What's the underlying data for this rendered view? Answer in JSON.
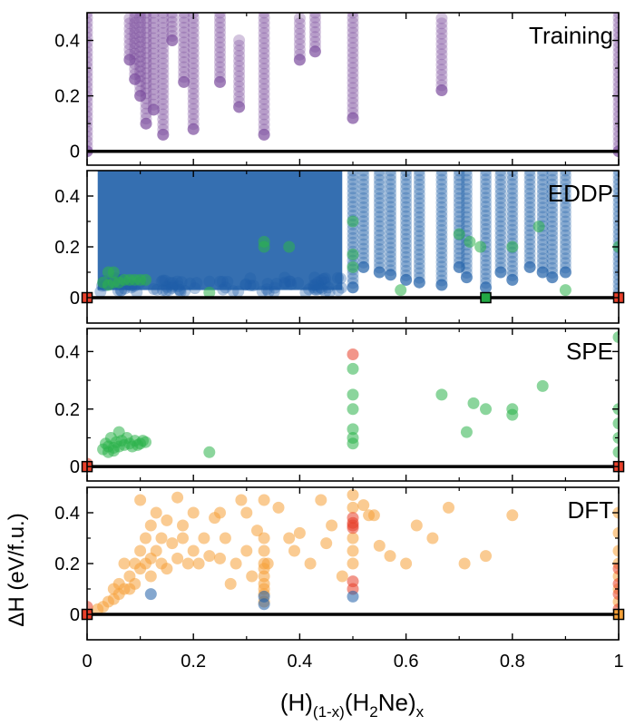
{
  "xlabel_parts": [
    "(H)",
    "(1-x)",
    "(H",
    "2",
    "Ne)",
    "x"
  ],
  "ylabel": "ΔH (eV/f.u.)",
  "colors": {
    "training": "#7a4a9c",
    "eddp": "#1f5fa8",
    "spe": "#2cb34a",
    "dft": "#f5a038",
    "red": "#e8402a",
    "hull_marker": "#22a844"
  },
  "chart_data": [
    {
      "type": "scatter",
      "panel_label": "Training",
      "x_ticks": [
        "0",
        "0.2",
        "0.4",
        "0.6",
        "0.8",
        "1"
      ],
      "y_ticks": [
        "0",
        "0.2",
        "0.4"
      ],
      "xlim": [
        0,
        1
      ],
      "ylim": [
        -0.05,
        0.5
      ],
      "hull_line": [
        [
          0,
          0
        ],
        [
          1,
          0
        ]
      ],
      "series": [
        {
          "color_key": "training",
          "columns": [
            {
              "x": 0.0,
              "y_min": 0.0,
              "y_max": 0.5
            },
            {
              "x": 0.08,
              "y_min": 0.33,
              "y_max": 0.48
            },
            {
              "x": 0.09,
              "y_min": 0.26,
              "y_max": 0.5
            },
            {
              "x": 0.1,
              "y_min": 0.2,
              "y_max": 0.5
            },
            {
              "x": 0.111,
              "y_min": 0.1,
              "y_max": 0.5
            },
            {
              "x": 0.125,
              "y_min": 0.15,
              "y_max": 0.5
            },
            {
              "x": 0.143,
              "y_min": 0.06,
              "y_max": 0.5
            },
            {
              "x": 0.16,
              "y_min": 0.4,
              "y_max": 0.5
            },
            {
              "x": 0.182,
              "y_min": 0.25,
              "y_max": 0.5
            },
            {
              "x": 0.2,
              "y_min": 0.08,
              "y_max": 0.5
            },
            {
              "x": 0.25,
              "y_min": 0.25,
              "y_max": 0.5
            },
            {
              "x": 0.286,
              "y_min": 0.16,
              "y_max": 0.4
            },
            {
              "x": 0.333,
              "y_min": 0.06,
              "y_max": 0.5
            },
            {
              "x": 0.4,
              "y_min": 0.33,
              "y_max": 0.48
            },
            {
              "x": 0.429,
              "y_min": 0.36,
              "y_max": 0.5
            },
            {
              "x": 0.5,
              "y_min": 0.12,
              "y_max": 0.5
            },
            {
              "x": 0.667,
              "y_min": 0.22,
              "y_max": 0.48
            },
            {
              "x": 1.0,
              "y_min": 0.0,
              "y_max": 0.5
            }
          ]
        }
      ]
    },
    {
      "type": "scatter",
      "panel_label": "EDDP",
      "x_ticks": [
        "0",
        "0.2",
        "0.4",
        "0.6",
        "0.8",
        "1"
      ],
      "y_ticks": [
        "0",
        "0.2",
        "0.4"
      ],
      "xlim": [
        0,
        1
      ],
      "ylim": [
        -0.1,
        0.5
      ],
      "hull_line": [
        [
          0,
          0
        ],
        [
          1,
          0
        ]
      ],
      "hull_markers": [
        {
          "x": 0.0,
          "y": 0.0,
          "color_key": "red"
        },
        {
          "x": 0.75,
          "y": 0.0,
          "color_key": "hull_marker"
        },
        {
          "x": 1.0,
          "y": 0.0,
          "color_key": "red"
        }
      ],
      "series": [
        {
          "color_key": "eddp",
          "dense_block": {
            "x_min": 0.02,
            "x_max": 0.48,
            "y_min": 0.03,
            "y_max": 0.5
          },
          "columns": [
            {
              "x": 0.5,
              "y_min": 0.04,
              "y_max": 0.5
            },
            {
              "x": 0.52,
              "y_min": 0.12,
              "y_max": 0.5
            },
            {
              "x": 0.55,
              "y_min": 0.1,
              "y_max": 0.5
            },
            {
              "x": 0.571,
              "y_min": 0.09,
              "y_max": 0.5
            },
            {
              "x": 0.6,
              "y_min": 0.07,
              "y_max": 0.5
            },
            {
              "x": 0.625,
              "y_min": 0.06,
              "y_max": 0.5
            },
            {
              "x": 0.667,
              "y_min": 0.05,
              "y_max": 0.5
            },
            {
              "x": 0.7,
              "y_min": 0.12,
              "y_max": 0.5
            },
            {
              "x": 0.714,
              "y_min": 0.08,
              "y_max": 0.5
            },
            {
              "x": 0.75,
              "y_min": 0.04,
              "y_max": 0.5
            },
            {
              "x": 0.778,
              "y_min": 0.1,
              "y_max": 0.5
            },
            {
              "x": 0.8,
              "y_min": 0.07,
              "y_max": 0.5
            },
            {
              "x": 0.833,
              "y_min": 0.12,
              "y_max": 0.5
            },
            {
              "x": 0.857,
              "y_min": 0.1,
              "y_max": 0.5
            },
            {
              "x": 0.875,
              "y_min": 0.08,
              "y_max": 0.5
            },
            {
              "x": 0.9,
              "y_min": 0.1,
              "y_max": 0.5
            },
            {
              "x": 1.0,
              "y_min": 0.0,
              "y_max": 0.5
            }
          ]
        },
        {
          "color_key": "spe",
          "points": [
            [
              0.03,
              0.06
            ],
            [
              0.04,
              0.05
            ],
            [
              0.05,
              0.06
            ],
            [
              0.06,
              0.06
            ],
            [
              0.07,
              0.07
            ],
            [
              0.08,
              0.07
            ],
            [
              0.09,
              0.07
            ],
            [
              0.1,
              0.07
            ],
            [
              0.11,
              0.07
            ],
            [
              0.04,
              0.1
            ],
            [
              0.05,
              0.1
            ],
            [
              0.333,
              0.2
            ],
            [
              0.333,
              0.22
            ],
            [
              0.38,
              0.2
            ],
            [
              0.5,
              0.3
            ],
            [
              0.5,
              0.17
            ],
            [
              0.5,
              0.12
            ],
            [
              0.7,
              0.25
            ],
            [
              0.72,
              0.22
            ],
            [
              0.74,
              0.2
            ],
            [
              0.8,
              0.2
            ],
            [
              0.85,
              0.28
            ],
            [
              0.23,
              0.02
            ],
            [
              0.9,
              0.03
            ],
            [
              0.59,
              0.03
            ],
            [
              1.0,
              0.2
            ]
          ]
        }
      ]
    },
    {
      "type": "scatter",
      "panel_label": "SPE",
      "x_ticks": [
        "0",
        "0.2",
        "0.4",
        "0.6",
        "0.8",
        "1"
      ],
      "y_ticks": [
        "0",
        "0.2",
        "0.4"
      ],
      "xlim": [
        0,
        1
      ],
      "ylim": [
        -0.05,
        0.48
      ],
      "hull_line": [
        [
          0,
          0
        ],
        [
          1,
          0
        ]
      ],
      "hull_markers": [
        {
          "x": 0.0,
          "y": 0.0,
          "color_key": "red"
        },
        {
          "x": 1.0,
          "y": 0.0,
          "color_key": "red"
        }
      ],
      "series": [
        {
          "color_key": "spe",
          "points": [
            [
              0.03,
              0.06
            ],
            [
              0.035,
              0.08
            ],
            [
              0.04,
              0.07
            ],
            [
              0.045,
              0.1
            ],
            [
              0.05,
              0.065
            ],
            [
              0.055,
              0.085
            ],
            [
              0.06,
              0.07
            ],
            [
              0.06,
              0.12
            ],
            [
              0.065,
              0.09
            ],
            [
              0.07,
              0.075
            ],
            [
              0.075,
              0.1
            ],
            [
              0.08,
              0.08
            ],
            [
              0.085,
              0.07
            ],
            [
              0.09,
              0.09
            ],
            [
              0.095,
              0.075
            ],
            [
              0.1,
              0.08
            ],
            [
              0.105,
              0.09
            ],
            [
              0.11,
              0.085
            ],
            [
              0.04,
              0.05
            ],
            [
              0.05,
              0.055
            ],
            [
              0.23,
              0.05
            ],
            [
              0.5,
              0.34
            ],
            [
              0.5,
              0.25
            ],
            [
              0.5,
              0.2
            ],
            [
              0.5,
              0.13
            ],
            [
              0.5,
              0.1
            ],
            [
              0.5,
              0.08
            ],
            [
              0.667,
              0.25
            ],
            [
              0.714,
              0.12
            ],
            [
              0.727,
              0.22
            ],
            [
              0.75,
              0.2
            ],
            [
              0.8,
              0.2
            ],
            [
              0.8,
              0.18
            ],
            [
              0.857,
              0.28
            ],
            [
              1.0,
              0.45
            ],
            [
              1.0,
              0.2
            ],
            [
              1.0,
              0.15
            ],
            [
              1.0,
              0.1
            ],
            [
              1.0,
              0.05
            ]
          ]
        },
        {
          "color_key": "red",
          "points": [
            [
              0.5,
              0.39
            ],
            [
              0.0,
              0.01
            ]
          ]
        }
      ]
    },
    {
      "type": "scatter",
      "panel_label": "DFT",
      "x_ticks": [
        "0",
        "0.2",
        "0.4",
        "0.6",
        "0.8",
        "1"
      ],
      "y_ticks": [
        "0",
        "0.2",
        "0.4"
      ],
      "xlim": [
        0,
        1
      ],
      "ylim": [
        -0.1,
        0.5
      ],
      "hull_line": [
        [
          0,
          0
        ],
        [
          1,
          0
        ]
      ],
      "hull_markers": [
        {
          "x": 0.0,
          "y": 0.0,
          "color_key": "red"
        },
        {
          "x": 1.0,
          "y": 0.0,
          "color_key": "dft"
        }
      ],
      "series": [
        {
          "color_key": "dft",
          "points": [
            [
              0.02,
              0.02
            ],
            [
              0.03,
              0.03
            ],
            [
              0.04,
              0.05
            ],
            [
              0.05,
              0.06
            ],
            [
              0.05,
              0.1
            ],
            [
              0.06,
              0.08
            ],
            [
              0.06,
              0.12
            ],
            [
              0.07,
              0.1
            ],
            [
              0.07,
              0.2
            ],
            [
              0.08,
              0.15
            ],
            [
              0.08,
              0.1
            ],
            [
              0.09,
              0.2
            ],
            [
              0.09,
              0.12
            ],
            [
              0.1,
              0.18
            ],
            [
              0.1,
              0.25
            ],
            [
              0.1,
              0.45
            ],
            [
              0.11,
              0.2
            ],
            [
              0.11,
              0.3
            ],
            [
              0.12,
              0.22
            ],
            [
              0.12,
              0.15
            ],
            [
              0.12,
              0.35
            ],
            [
              0.13,
              0.25
            ],
            [
              0.13,
              0.4
            ],
            [
              0.14,
              0.2
            ],
            [
              0.14,
              0.3
            ],
            [
              0.15,
              0.18
            ],
            [
              0.15,
              0.37
            ],
            [
              0.16,
              0.28
            ],
            [
              0.17,
              0.22
            ],
            [
              0.17,
              0.46
            ],
            [
              0.18,
              0.3
            ],
            [
              0.18,
              0.35
            ],
            [
              0.19,
              0.2
            ],
            [
              0.2,
              0.25
            ],
            [
              0.2,
              0.4
            ],
            [
              0.21,
              0.2
            ],
            [
              0.22,
              0.3
            ],
            [
              0.23,
              0.23
            ],
            [
              0.24,
              0.38
            ],
            [
              0.25,
              0.4
            ],
            [
              0.25,
              0.22
            ],
            [
              0.26,
              0.3
            ],
            [
              0.27,
              0.12
            ],
            [
              0.28,
              0.2
            ],
            [
              0.29,
              0.45
            ],
            [
              0.3,
              0.25
            ],
            [
              0.3,
              0.4
            ],
            [
              0.31,
              0.15
            ],
            [
              0.32,
              0.33
            ],
            [
              0.333,
              0.45
            ],
            [
              0.333,
              0.3
            ],
            [
              0.333,
              0.25
            ],
            [
              0.333,
              0.2
            ],
            [
              0.333,
              0.18
            ],
            [
              0.333,
              0.15
            ],
            [
              0.333,
              0.12
            ],
            [
              0.333,
              0.1
            ],
            [
              0.333,
              0.08
            ],
            [
              0.333,
              0.05
            ],
            [
              0.34,
              0.2
            ],
            [
              0.36,
              0.42
            ],
            [
              0.38,
              0.3
            ],
            [
              0.39,
              0.25
            ],
            [
              0.4,
              0.32
            ],
            [
              0.42,
              0.2
            ],
            [
              0.44,
              0.45
            ],
            [
              0.45,
              0.28
            ],
            [
              0.46,
              0.35
            ],
            [
              0.48,
              0.15
            ],
            [
              0.5,
              0.47
            ],
            [
              0.5,
              0.42
            ],
            [
              0.5,
              0.3
            ],
            [
              0.5,
              0.25
            ],
            [
              0.5,
              0.2
            ],
            [
              0.52,
              0.43
            ],
            [
              0.53,
              0.39
            ],
            [
              0.54,
              0.39
            ],
            [
              0.55,
              0.27
            ],
            [
              0.57,
              0.23
            ],
            [
              0.6,
              0.2
            ],
            [
              0.62,
              0.35
            ],
            [
              0.65,
              0.3
            ],
            [
              0.68,
              0.42
            ],
            [
              0.71,
              0.2
            ],
            [
              0.75,
              0.23
            ],
            [
              0.8,
              0.39
            ],
            [
              1.0,
              0.4
            ],
            [
              1.0,
              0.32
            ],
            [
              1.0,
              0.25
            ],
            [
              1.0,
              0.2
            ],
            [
              1.0,
              0.15
            ],
            [
              1.0,
              0.1
            ],
            [
              1.0,
              0.05
            ]
          ]
        },
        {
          "color_key": "red",
          "points": [
            [
              0.5,
              0.38
            ],
            [
              0.5,
              0.36
            ],
            [
              0.5,
              0.35
            ],
            [
              0.5,
              0.34
            ],
            [
              0.5,
              0.13
            ],
            [
              0.5,
              0.1
            ],
            [
              0.0,
              0.03
            ],
            [
              1.0,
              0.18
            ],
            [
              1.0,
              0.12
            ],
            [
              1.0,
              0.08
            ],
            [
              1.0,
              0.02
            ]
          ]
        },
        {
          "color_key": "eddp",
          "points": [
            [
              0.5,
              0.07
            ],
            [
              0.333,
              0.07
            ],
            [
              0.12,
              0.08
            ],
            [
              0.333,
              0.04
            ]
          ]
        }
      ]
    }
  ]
}
